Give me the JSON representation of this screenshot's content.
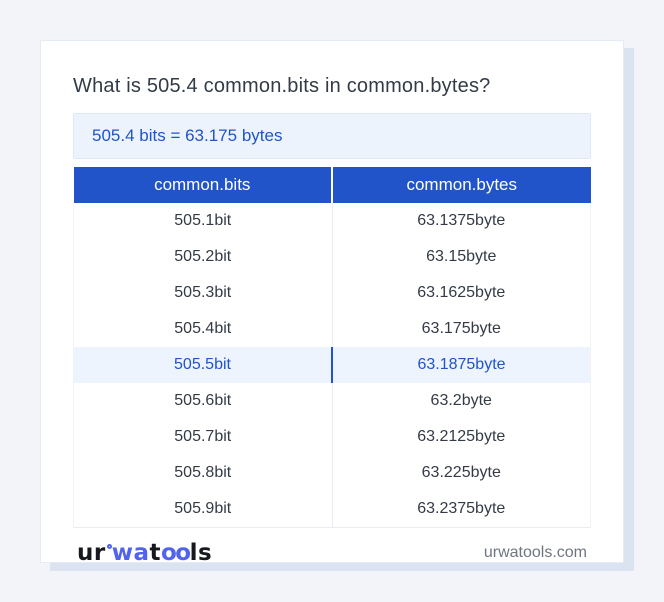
{
  "page": {
    "title": "What is 505.4 common.bits in common.bytes?",
    "result_text": "505.4 bits = 63.175 bytes"
  },
  "table": {
    "columns": [
      "common.bits",
      "common.bytes"
    ],
    "rows": [
      {
        "bits": "505.1bit",
        "bytes": "63.1375byte",
        "highlighted": false
      },
      {
        "bits": "505.2bit",
        "bytes": "63.15byte",
        "highlighted": false
      },
      {
        "bits": "505.3bit",
        "bytes": "63.1625byte",
        "highlighted": false
      },
      {
        "bits": "505.4bit",
        "bytes": "63.175byte",
        "highlighted": false
      },
      {
        "bits": "505.5bit",
        "bytes": "63.1875byte",
        "highlighted": true
      },
      {
        "bits": "505.6bit",
        "bytes": "63.2byte",
        "highlighted": false
      },
      {
        "bits": "505.7bit",
        "bytes": "63.2125byte",
        "highlighted": false
      },
      {
        "bits": "505.8bit",
        "bytes": "63.225byte",
        "highlighted": false
      },
      {
        "bits": "505.9bit",
        "bytes": "63.2375byte",
        "highlighted": false
      }
    ]
  },
  "footer": {
    "logo_part_ur": "ur",
    "logo_part_wa": "wa",
    "logo_part_t": "t",
    "logo_part_oo": "oo",
    "logo_part_ls": "ls",
    "domain": "urwatools.com"
  },
  "colors": {
    "accent_blue": "#2154c9",
    "logo_blue": "#5062ee",
    "result_box_bg": "#ecf3fc",
    "highlight_row_bg": "#edf4fe",
    "page_bg": "#f2f4f9"
  }
}
